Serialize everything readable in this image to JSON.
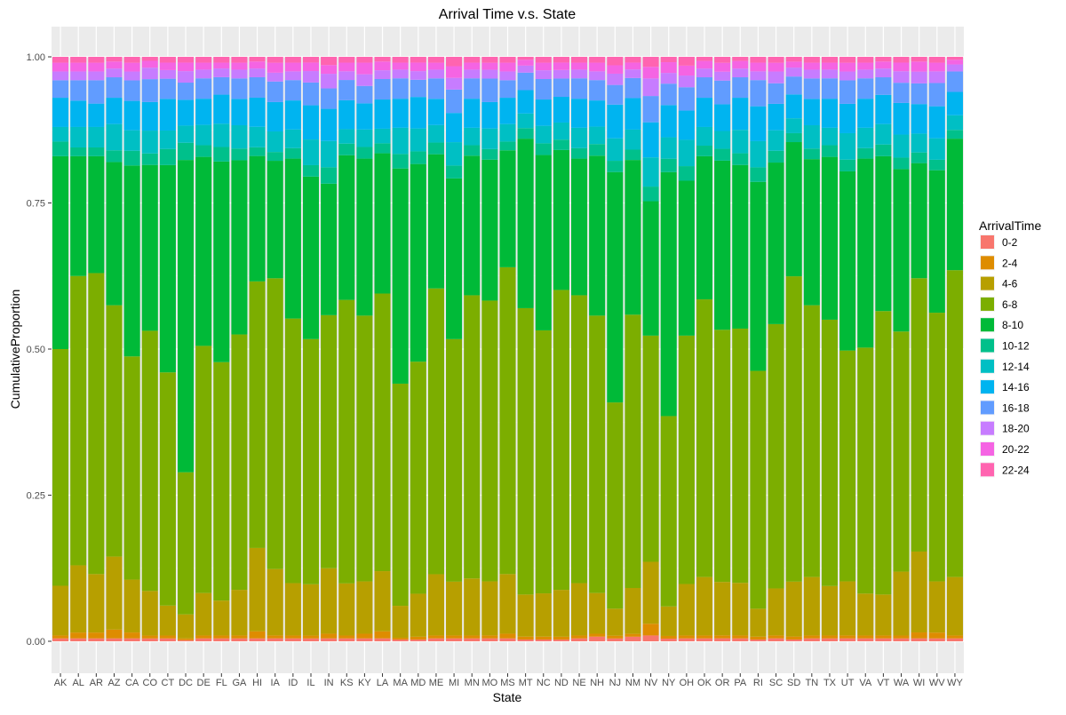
{
  "chart_data": {
    "type": "bar",
    "stacked": true,
    "title": "Arrival Time v.s. State",
    "xlabel": "State",
    "ylabel": "CumulativeProportion",
    "ylim": [
      0,
      1
    ],
    "yticks": [
      0.0,
      0.25,
      0.5,
      0.75,
      1.0
    ],
    "ytick_labels": [
      "0.00",
      "0.25",
      "0.50",
      "0.75",
      "1.00"
    ],
    "grid": true,
    "legend": {
      "title": "ArrivalTime",
      "position": "right"
    },
    "categories": [
      "AK",
      "AL",
      "AR",
      "AZ",
      "CA",
      "CO",
      "CT",
      "DC",
      "DE",
      "FL",
      "GA",
      "HI",
      "IA",
      "ID",
      "IL",
      "IN",
      "KS",
      "KY",
      "LA",
      "MA",
      "MD",
      "ME",
      "MI",
      "MN",
      "MO",
      "MS",
      "MT",
      "NC",
      "ND",
      "NE",
      "NH",
      "NJ",
      "NM",
      "NV",
      "NY",
      "OH",
      "OK",
      "OR",
      "PA",
      "RI",
      "SC",
      "SD",
      "TN",
      "TX",
      "UT",
      "VA",
      "VT",
      "WA",
      "WI",
      "WV",
      "WY"
    ],
    "series": [
      {
        "name": "0-2",
        "color": "#F8766D",
        "values": [
          0.005,
          0.005,
          0.005,
          0.005,
          0.005,
          0.005,
          0.005,
          0.002,
          0.005,
          0.005,
          0.005,
          0.005,
          0.005,
          0.005,
          0.005,
          0.005,
          0.005,
          0.005,
          0.005,
          0.003,
          0.003,
          0.005,
          0.005,
          0.005,
          0.005,
          0.005,
          0.003,
          0.003,
          0.003,
          0.005,
          0.008,
          0.005,
          0.008,
          0.01,
          0.005,
          0.005,
          0.005,
          0.005,
          0.005,
          0.003,
          0.005,
          0.003,
          0.005,
          0.005,
          0.005,
          0.005,
          0.005,
          0.005,
          0.005,
          0.005,
          0.005
        ]
      },
      {
        "name": "2-4",
        "color": "#DE8C00",
        "values": [
          0.005,
          0.01,
          0.01,
          0.015,
          0.01,
          0.005,
          0.005,
          0.003,
          0.005,
          0.005,
          0.005,
          0.012,
          0.005,
          0.005,
          0.005,
          0.008,
          0.005,
          0.008,
          0.012,
          0.003,
          0.005,
          0.005,
          0.005,
          0.005,
          0.005,
          0.008,
          0.005,
          0.005,
          0.005,
          0.005,
          0.005,
          0.005,
          0.005,
          0.02,
          0.005,
          0.005,
          0.005,
          0.005,
          0.005,
          0.005,
          0.005,
          0.005,
          0.005,
          0.005,
          0.005,
          0.005,
          0.005,
          0.005,
          0.01,
          0.01,
          0.005
        ]
      },
      {
        "name": "4-6",
        "color": "#B79F00",
        "values": [
          0.085,
          0.115,
          0.1,
          0.125,
          0.09,
          0.078,
          0.052,
          0.042,
          0.073,
          0.06,
          0.078,
          0.143,
          0.113,
          0.09,
          0.09,
          0.112,
          0.09,
          0.09,
          0.103,
          0.055,
          0.075,
          0.105,
          0.092,
          0.098,
          0.092,
          0.102,
          0.072,
          0.074,
          0.082,
          0.09,
          0.07,
          0.048,
          0.08,
          0.106,
          0.055,
          0.088,
          0.1,
          0.09,
          0.09,
          0.048,
          0.08,
          0.092,
          0.1,
          0.085,
          0.092,
          0.072,
          0.07,
          0.111,
          0.137,
          0.088,
          0.1
        ]
      },
      {
        "name": "6-8",
        "color": "#7CAE00",
        "values": [
          0.405,
          0.495,
          0.515,
          0.43,
          0.38,
          0.455,
          0.405,
          0.248,
          0.425,
          0.41,
          0.437,
          0.457,
          0.495,
          0.455,
          0.43,
          0.433,
          0.49,
          0.457,
          0.475,
          0.382,
          0.405,
          0.49,
          0.415,
          0.487,
          0.478,
          0.525,
          0.49,
          0.45,
          0.525,
          0.495,
          0.477,
          0.367,
          0.477,
          0.387,
          0.355,
          0.425,
          0.475,
          0.425,
          0.435,
          0.409,
          0.45,
          0.512,
          0.465,
          0.458,
          0.393,
          0.423,
          0.485,
          0.417,
          0.463,
          0.462,
          0.525
        ]
      },
      {
        "name": "8-10",
        "color": "#00BA38",
        "values": [
          0.33,
          0.205,
          0.2,
          0.245,
          0.325,
          0.29,
          0.36,
          0.545,
          0.325,
          0.345,
          0.298,
          0.215,
          0.2,
          0.275,
          0.285,
          0.225,
          0.25,
          0.27,
          0.24,
          0.37,
          0.345,
          0.23,
          0.275,
          0.24,
          0.24,
          0.2,
          0.29,
          0.3,
          0.245,
          0.235,
          0.275,
          0.41,
          0.27,
          0.23,
          0.455,
          0.265,
          0.245,
          0.285,
          0.28,
          0.325,
          0.275,
          0.225,
          0.25,
          0.28,
          0.305,
          0.325,
          0.265,
          0.282,
          0.195,
          0.245,
          0.225
        ]
      },
      {
        "name": "10-12",
        "color": "#00C08B",
        "values": [
          0.025,
          0.015,
          0.015,
          0.02,
          0.025,
          0.02,
          0.028,
          0.03,
          0.02,
          0.025,
          0.02,
          0.015,
          0.015,
          0.018,
          0.02,
          0.028,
          0.02,
          0.02,
          0.017,
          0.025,
          0.022,
          0.02,
          0.022,
          0.018,
          0.018,
          0.015,
          0.018,
          0.02,
          0.018,
          0.018,
          0.02,
          0.02,
          0.018,
          0.025,
          0.025,
          0.025,
          0.018,
          0.02,
          0.02,
          0.025,
          0.02,
          0.015,
          0.018,
          0.02,
          0.02,
          0.018,
          0.02,
          0.02,
          0.018,
          0.018,
          0.015
        ]
      },
      {
        "name": "12-14",
        "color": "#00BFC4",
        "values": [
          0.025,
          0.035,
          0.035,
          0.045,
          0.035,
          0.04,
          0.032,
          0.03,
          0.035,
          0.04,
          0.04,
          0.035,
          0.035,
          0.032,
          0.045,
          0.045,
          0.025,
          0.03,
          0.025,
          0.045,
          0.04,
          0.03,
          0.04,
          0.03,
          0.035,
          0.03,
          0.025,
          0.03,
          0.03,
          0.035,
          0.03,
          0.04,
          0.035,
          0.05,
          0.04,
          0.045,
          0.032,
          0.03,
          0.04,
          0.045,
          0.035,
          0.025,
          0.04,
          0.03,
          0.045,
          0.035,
          0.035,
          0.04,
          0.032,
          0.037,
          0.025
        ]
      },
      {
        "name": "14-16",
        "color": "#00B4F0",
        "values": [
          0.05,
          0.045,
          0.04,
          0.045,
          0.05,
          0.05,
          0.055,
          0.045,
          0.045,
          0.05,
          0.045,
          0.05,
          0.05,
          0.05,
          0.06,
          0.055,
          0.05,
          0.045,
          0.05,
          0.05,
          0.055,
          0.045,
          0.05,
          0.05,
          0.045,
          0.045,
          0.04,
          0.045,
          0.045,
          0.05,
          0.045,
          0.06,
          0.055,
          0.06,
          0.06,
          0.05,
          0.05,
          0.045,
          0.055,
          0.06,
          0.045,
          0.04,
          0.045,
          0.05,
          0.05,
          0.05,
          0.05,
          0.055,
          0.05,
          0.055,
          0.04
        ]
      },
      {
        "name": "16-18",
        "color": "#619CFF",
        "values": [
          0.03,
          0.035,
          0.04,
          0.035,
          0.035,
          0.04,
          0.035,
          0.03,
          0.035,
          0.03,
          0.035,
          0.035,
          0.035,
          0.035,
          0.04,
          0.035,
          0.035,
          0.03,
          0.035,
          0.035,
          0.03,
          0.035,
          0.04,
          0.035,
          0.04,
          0.03,
          0.03,
          0.035,
          0.032,
          0.035,
          0.035,
          0.035,
          0.035,
          0.045,
          0.04,
          0.04,
          0.035,
          0.04,
          0.035,
          0.045,
          0.035,
          0.03,
          0.035,
          0.035,
          0.04,
          0.035,
          0.03,
          0.035,
          0.035,
          0.04,
          0.035
        ]
      },
      {
        "name": "18-20",
        "color": "#C77CFF",
        "values": [
          0.015,
          0.015,
          0.015,
          0.015,
          0.015,
          0.02,
          0.015,
          0.02,
          0.015,
          0.015,
          0.015,
          0.015,
          0.015,
          0.015,
          0.02,
          0.025,
          0.015,
          0.02,
          0.015,
          0.015,
          0.015,
          0.015,
          0.02,
          0.015,
          0.015,
          0.015,
          0.012,
          0.015,
          0.015,
          0.015,
          0.015,
          0.02,
          0.015,
          0.03,
          0.02,
          0.02,
          0.015,
          0.015,
          0.015,
          0.015,
          0.02,
          0.015,
          0.015,
          0.015,
          0.015,
          0.015,
          0.015,
          0.02,
          0.02,
          0.02,
          0.012
        ]
      },
      {
        "name": "20-22",
        "color": "#F564E3",
        "values": [
          0.015,
          0.015,
          0.015,
          0.012,
          0.015,
          0.012,
          0.013,
          0.015,
          0.012,
          0.01,
          0.012,
          0.012,
          0.017,
          0.015,
          0.015,
          0.015,
          0.015,
          0.02,
          0.015,
          0.012,
          0.015,
          0.012,
          0.02,
          0.012,
          0.012,
          0.015,
          0.01,
          0.013,
          0.013,
          0.012,
          0.015,
          0.015,
          0.012,
          0.02,
          0.02,
          0.017,
          0.013,
          0.015,
          0.013,
          0.015,
          0.015,
          0.01,
          0.012,
          0.012,
          0.015,
          0.012,
          0.012,
          0.015,
          0.017,
          0.015,
          0.008
        ]
      },
      {
        "name": "22-24",
        "color": "#FF64B0",
        "values": [
          0.01,
          0.01,
          0.01,
          0.008,
          0.01,
          0.007,
          0.01,
          0.01,
          0.01,
          0.01,
          0.01,
          0.008,
          0.01,
          0.01,
          0.01,
          0.014,
          0.01,
          0.01,
          0.008,
          0.01,
          0.01,
          0.01,
          0.016,
          0.01,
          0.01,
          0.01,
          0.005,
          0.01,
          0.01,
          0.01,
          0.01,
          0.015,
          0.01,
          0.017,
          0.01,
          0.015,
          0.007,
          0.01,
          0.007,
          0.01,
          0.01,
          0.008,
          0.01,
          0.01,
          0.01,
          0.01,
          0.008,
          0.01,
          0.008,
          0.01,
          0.005
        ]
      }
    ]
  }
}
